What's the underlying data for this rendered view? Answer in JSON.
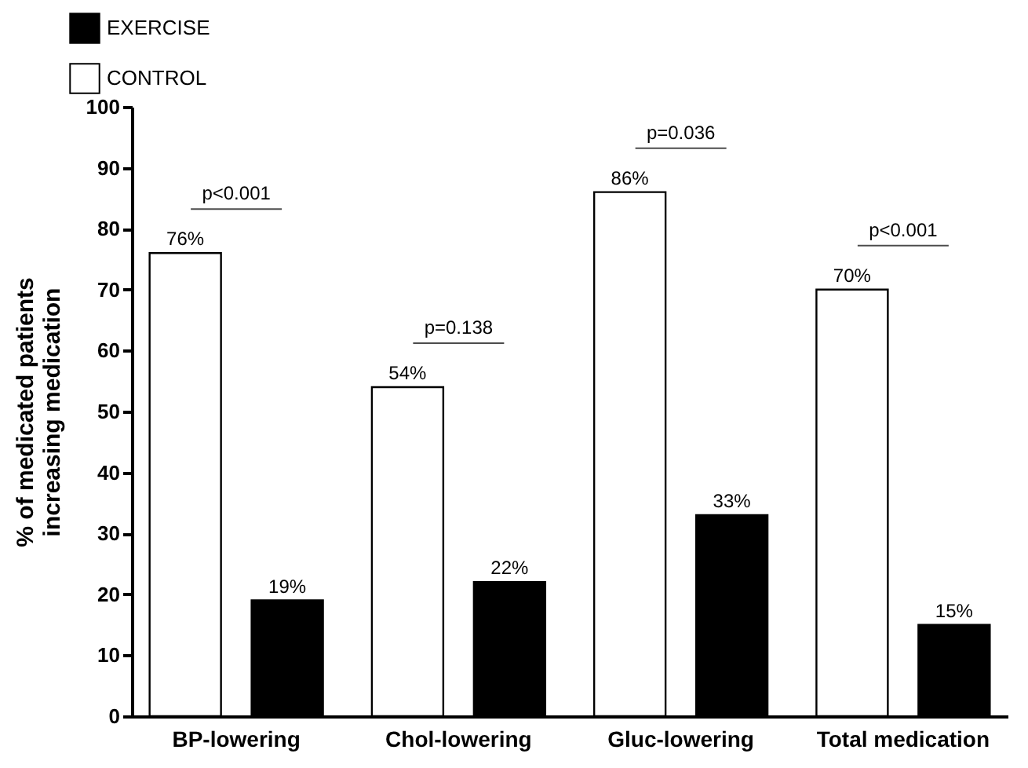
{
  "chart_data": {
    "type": "bar",
    "ylabel": "% of medicated patients\nincreasing medication",
    "categories": [
      "BP-lowering",
      "Chol-lowering",
      "Gluc-lowering",
      "Total medication"
    ],
    "series": [
      {
        "name": "CONTROL",
        "color": "#ffffff",
        "values": [
          76,
          54,
          86,
          70
        ],
        "value_labels": [
          "76%",
          "54%",
          "86%",
          "70%"
        ]
      },
      {
        "name": "EXERCISE",
        "color": "#000000",
        "values": [
          19,
          22,
          33,
          15
        ],
        "value_labels": [
          "19%",
          "22%",
          "33%",
          "15%"
        ]
      }
    ],
    "ylim": [
      0,
      100
    ],
    "yticks": [
      0,
      10,
      20,
      30,
      40,
      50,
      60,
      70,
      80,
      90,
      100
    ],
    "grid": false,
    "legend": "top left",
    "annotations": [
      "p<0.001",
      "p=0.138",
      "p=0.036",
      "p<0.001"
    ]
  }
}
